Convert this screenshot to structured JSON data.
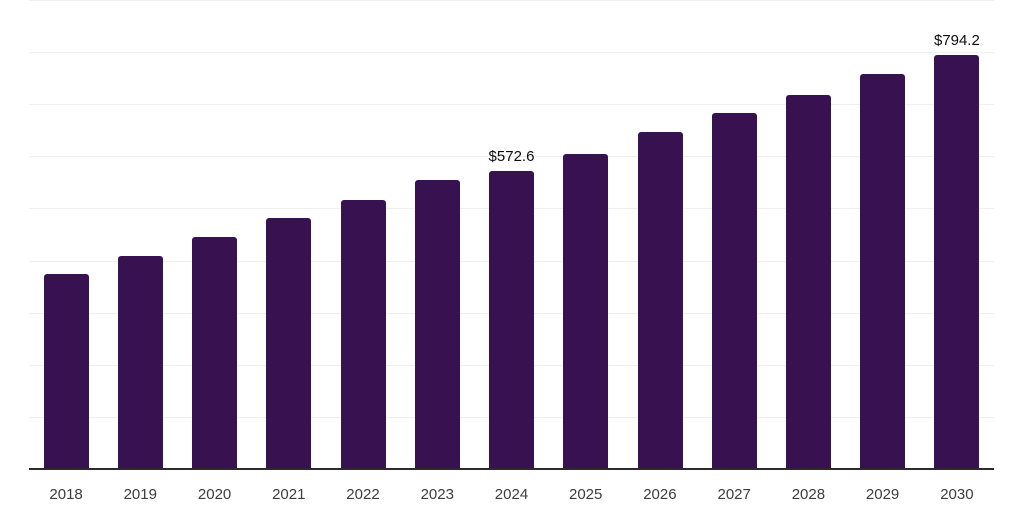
{
  "chart_data": {
    "type": "bar",
    "title": "",
    "xlabel": "",
    "ylabel": "",
    "categories": [
      "2018",
      "2019",
      "2020",
      "2021",
      "2022",
      "2023",
      "2024",
      "2025",
      "2026",
      "2027",
      "2028",
      "2029",
      "2030"
    ],
    "values": [
      373.7,
      408.5,
      445.4,
      481.3,
      515.8,
      554.5,
      572.6,
      604.1,
      646.3,
      682.8,
      717.3,
      757.6,
      794.2
    ],
    "labeled_points": [
      {
        "category": "2024",
        "label": "$572.6"
      },
      {
        "category": "2030",
        "label": "$794.2"
      }
    ],
    "ylim": [
      0,
      900
    ],
    "gridline_interval": 100,
    "grid": "horizontal",
    "legend": "none",
    "y_axis_tick_labels": "none",
    "colors": {
      "bar": "#371150",
      "gridline": "#efefef",
      "axis_line": "#2b2b2b",
      "tick_label": "#3d3d3d",
      "value_label": "#0d0d0d",
      "background": "#ffffff"
    }
  }
}
